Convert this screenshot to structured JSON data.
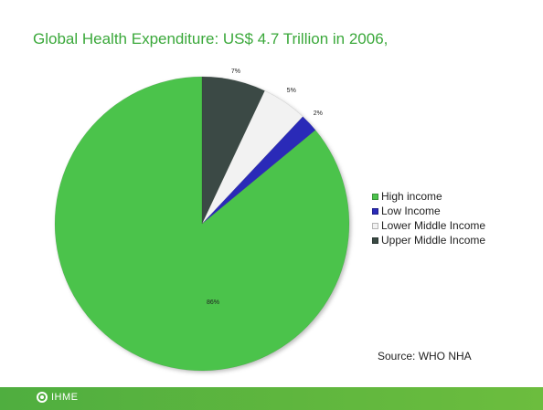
{
  "title": "Global Health Expenditure: US$ 4.7 Trillion in 2006,",
  "source_note": "Source: WHO NHA",
  "footer": {
    "logo_text": "IHME"
  },
  "colors": {
    "title": "#3aa83a",
    "footer": "#5cb53e"
  },
  "chart_data": {
    "type": "pie",
    "title": "",
    "legend_position": "right",
    "slices": [
      {
        "name": "High income",
        "value": 86,
        "label": "86%",
        "color": "#4cc34c"
      },
      {
        "name": "Low Income",
        "value": 2,
        "label": "2%",
        "color": "#2b2bb8"
      },
      {
        "name": "Lower Middle Income",
        "value": 5,
        "label": "5%",
        "color": "#f2f2f2"
      },
      {
        "name": "Upper Middle Income",
        "value": 7,
        "label": "7%",
        "color": "#3a4a44"
      }
    ]
  }
}
